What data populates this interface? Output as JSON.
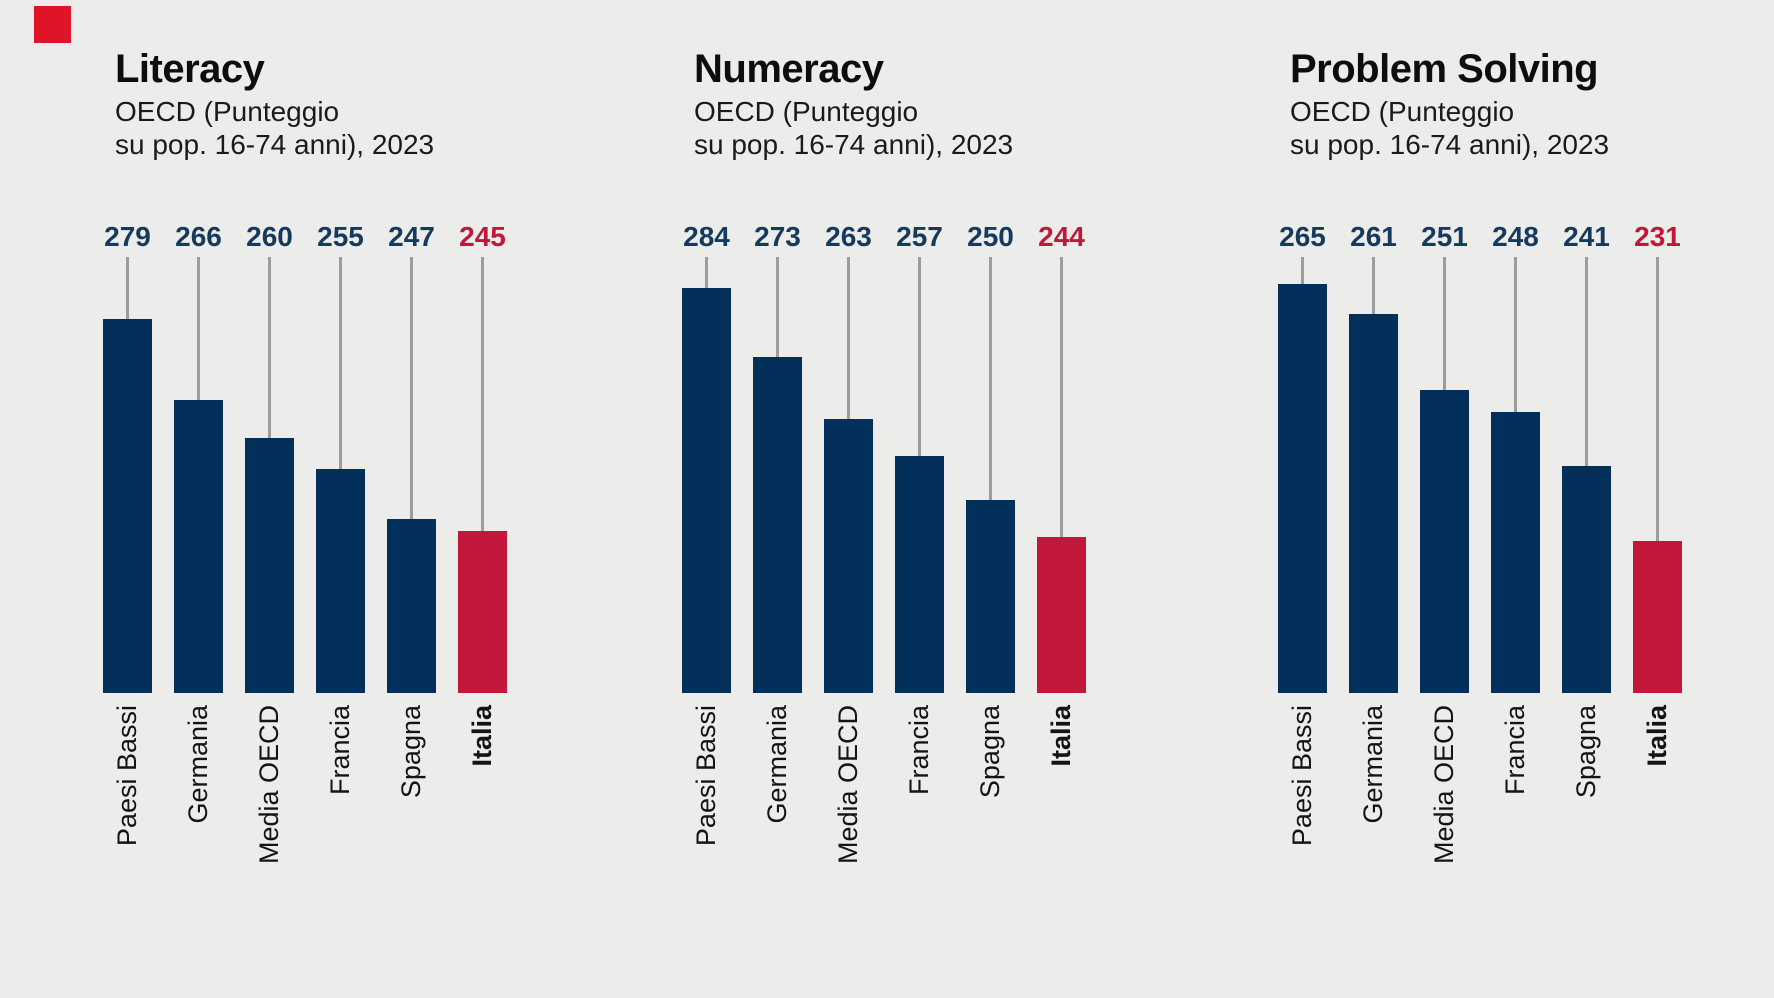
{
  "page": {
    "background_color": "#ECECEA",
    "language": "it"
  },
  "brand": {
    "mark": "red-square",
    "mark_color": "#DE1428"
  },
  "colors": {
    "bar_navy": "#03305B",
    "bar_highlight_red": "#C1173A",
    "value_navy": "#16395E",
    "value_highlight_red": "#C1173A",
    "connector_gray": "#9C9C9C",
    "title_black": "#0D0D0D"
  },
  "chart_data": [
    {
      "type": "bar",
      "title": "Literacy",
      "subtitle_line1": "OECD (Punteggio",
      "subtitle_line2": "su pop. 16-74 anni), 2023",
      "xlabel": "",
      "ylabel": "",
      "categories": [
        "Paesi Bassi",
        "Germania",
        "Media OECD",
        "Francia",
        "Spagna",
        "Italia"
      ],
      "values": [
        279,
        266,
        260,
        255,
        247,
        245
      ],
      "highlight_index": 5,
      "highlight_category": "Italia",
      "ylim": [
        219,
        289
      ],
      "grid": false,
      "legend": false,
      "value_labels_position": "above",
      "connector_lines": true
    },
    {
      "type": "bar",
      "title": "Numeracy",
      "subtitle_line1": "OECD (Punteggio",
      "subtitle_line2": "su pop. 16-74 anni), 2023",
      "xlabel": "",
      "ylabel": "",
      "categories": [
        "Paesi Bassi",
        "Germania",
        "Media OECD",
        "Francia",
        "Spagna",
        "Italia"
      ],
      "values": [
        284,
        273,
        263,
        257,
        250,
        244
      ],
      "highlight_index": 5,
      "highlight_category": "Italia",
      "ylim": [
        219,
        289
      ],
      "grid": false,
      "legend": false,
      "value_labels_position": "above",
      "connector_lines": true
    },
    {
      "type": "bar",
      "title": "Problem Solving",
      "subtitle_line1": "OECD (Punteggio",
      "subtitle_line2": "su pop. 16-74 anni), 2023",
      "xlabel": "",
      "ylabel": "",
      "categories": [
        "Paesi Bassi",
        "Germania",
        "Media OECD",
        "Francia",
        "Spagna",
        "Italia"
      ],
      "values": [
        265,
        261,
        251,
        248,
        241,
        231
      ],
      "highlight_index": 5,
      "highlight_category": "Italia",
      "ylim": [
        211,
        268.5
      ],
      "grid": false,
      "legend": false,
      "value_labels_position": "above",
      "connector_lines": true
    }
  ]
}
